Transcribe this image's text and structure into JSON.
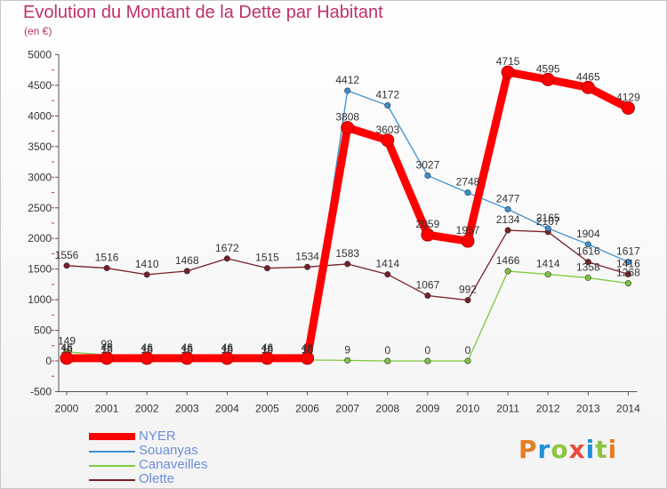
{
  "title": "Evolution du Montant de la Dette par Habitant",
  "unit": "(en €)",
  "logo": {
    "text": "Proxiti",
    "colors": [
      "#e67e22",
      "#1e90d8",
      "#8cc63f",
      "#e74c3c",
      "#1e90d8",
      "#8cc63f",
      "#e67e22"
    ]
  },
  "chart_data": {
    "type": "line",
    "title": "Evolution du Montant de la Dette par Habitant",
    "ylabel": "(en €)",
    "xlabel": "",
    "x": [
      "2000",
      "2001",
      "2002",
      "2003",
      "2004",
      "2005",
      "2006",
      "2007",
      "2008",
      "2009",
      "2010",
      "2011",
      "2012",
      "2013",
      "2014"
    ],
    "ylim": [
      -500,
      5000
    ],
    "yticks": [
      -500,
      0,
      500,
      1000,
      1500,
      2000,
      2500,
      3000,
      3500,
      4000,
      4500,
      5000
    ],
    "grid": false,
    "legend_position": "bottom-left",
    "series": [
      {
        "name": "NYER",
        "color": "#ff0000",
        "values": [
          46,
          46,
          46,
          46,
          46,
          46,
          46,
          3808,
          3603,
          2059,
          1957,
          4715,
          4595,
          4465,
          4129
        ]
      },
      {
        "name": "Souanyas",
        "color": "#3a8fd0",
        "values": [
          16,
          16,
          16,
          16,
          16,
          16,
          16,
          4412,
          4172,
          3027,
          2748,
          2477,
          2165,
          1904,
          1617
        ]
      },
      {
        "name": "Canaveilles",
        "color": "#7dc83c",
        "values": [
          149,
          98,
          16,
          16,
          16,
          16,
          16,
          9,
          0,
          0,
          0,
          1466,
          1414,
          1358,
          1268
        ]
      },
      {
        "name": "Olette",
        "color": "#7a1e2a",
        "values": [
          1556,
          1516,
          1410,
          1468,
          1672,
          1515,
          1534,
          1583,
          1414,
          1067,
          992,
          2134,
          2107,
          1616,
          1416
        ]
      }
    ]
  }
}
